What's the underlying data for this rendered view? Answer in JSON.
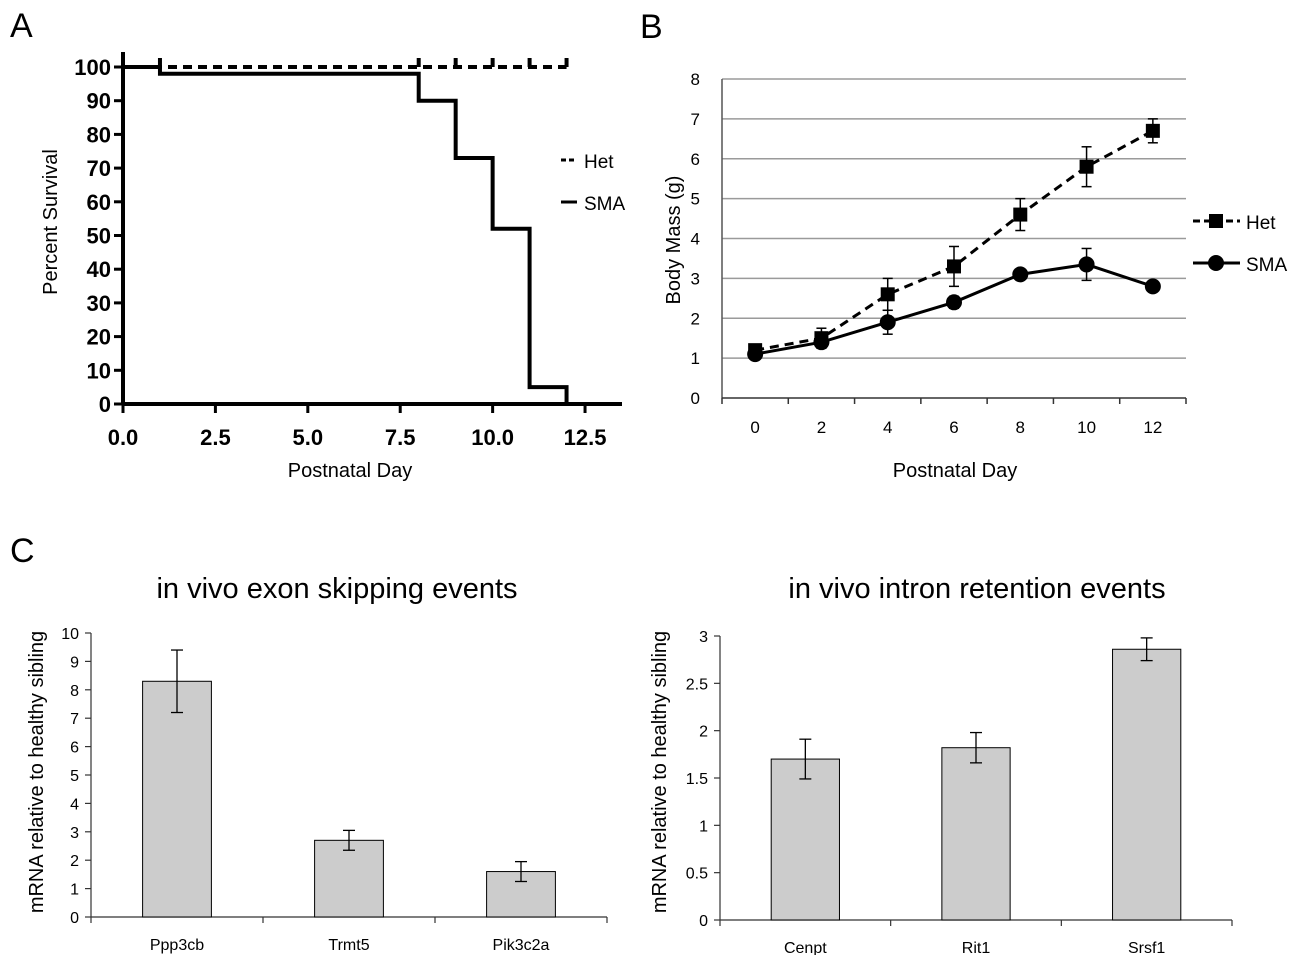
{
  "panel_labels": {
    "a": "A",
    "b": "B",
    "c": "C"
  },
  "chart_data": [
    {
      "id": "A",
      "type": "line",
      "step": true,
      "title": "",
      "xlabel": "Postnatal Day",
      "ylabel": "Percent Survival",
      "xlim": [
        0,
        13.5
      ],
      "ylim": [
        0,
        100
      ],
      "xticks": [
        "0.0",
        "2.5",
        "5.0",
        "7.5",
        "10.0",
        "12.5"
      ],
      "yticks": [
        "0",
        "10",
        "20",
        "30",
        "40",
        "50",
        "60",
        "70",
        "80",
        "90",
        "100"
      ],
      "legend_position": "right",
      "series": [
        {
          "name": "Het",
          "style": "dashed",
          "x": [
            0,
            12
          ],
          "y": [
            100,
            100
          ],
          "censor_x": [
            1,
            8,
            9,
            10,
            11,
            12
          ]
        },
        {
          "name": "SMA",
          "style": "solid",
          "x": [
            0,
            1,
            8,
            9,
            10,
            11,
            12
          ],
          "y": [
            100,
            98,
            90,
            73,
            52,
            5,
            0
          ]
        }
      ]
    },
    {
      "id": "B",
      "type": "line",
      "title": "",
      "xlabel": "Postnatal Day",
      "ylabel": "Body Mass (g)",
      "ylim": [
        0,
        8
      ],
      "grid": true,
      "categories": [
        "0",
        "2",
        "4",
        "6",
        "8",
        "10",
        "12"
      ],
      "yticks": [
        "0",
        "1",
        "2",
        "3",
        "4",
        "5",
        "6",
        "7",
        "8"
      ],
      "legend_position": "right",
      "series": [
        {
          "name": "Het",
          "style": "dashed",
          "marker": "square",
          "values": [
            1.2,
            1.5,
            2.6,
            3.3,
            4.6,
            5.8,
            6.7
          ],
          "error": [
            0.1,
            0.25,
            0.4,
            0.5,
            0.4,
            0.5,
            0.3
          ]
        },
        {
          "name": "SMA",
          "style": "solid",
          "marker": "circle",
          "values": [
            1.1,
            1.4,
            1.9,
            2.4,
            3.1,
            3.35,
            2.8
          ],
          "error": [
            0.1,
            0.15,
            0.3,
            0.15,
            0.1,
            0.4,
            0.05
          ]
        }
      ]
    },
    {
      "id": "C1",
      "type": "bar",
      "title": "in vivo exon skipping events",
      "xlabel": "",
      "ylabel": "mRNA relative to healthy sibling",
      "ylim": [
        0,
        10
      ],
      "yticks": [
        "0",
        "1",
        "2",
        "3",
        "4",
        "5",
        "6",
        "7",
        "8",
        "9",
        "10"
      ],
      "categories": [
        "Ppp3cb",
        "Trmt5",
        "Pik3c2a"
      ],
      "values": [
        8.3,
        2.7,
        1.6
      ],
      "error": [
        1.1,
        0.35,
        0.35
      ]
    },
    {
      "id": "C2",
      "type": "bar",
      "title": "in vivo intron retention events",
      "xlabel": "",
      "ylabel": "mRNA relative to healthy sibling",
      "ylim": [
        0,
        3
      ],
      "yticks": [
        "0",
        "0.5",
        "1",
        "1.5",
        "2",
        "2.5",
        "3"
      ],
      "categories": [
        "Cenpt",
        "Rit1",
        "Srsf1"
      ],
      "values": [
        1.7,
        1.82,
        2.86
      ],
      "error": [
        0.21,
        0.16,
        0.12
      ]
    }
  ]
}
